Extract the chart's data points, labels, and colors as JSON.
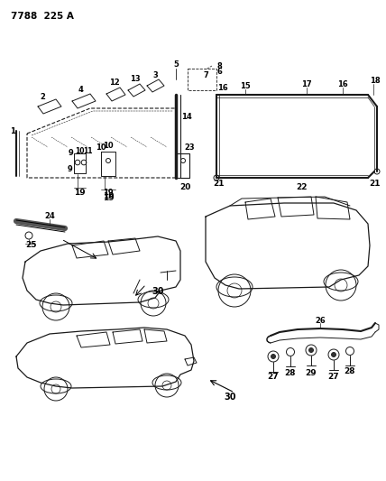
{
  "title": "7788  225 A",
  "bg_color": "#ffffff",
  "fig_width": 4.28,
  "fig_height": 5.33,
  "dpi": 100
}
